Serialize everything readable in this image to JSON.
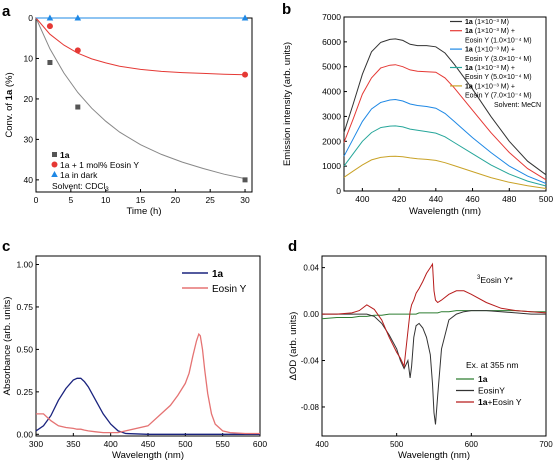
{
  "chart_data": [
    {
      "panel": "a",
      "type": "scatter",
      "xlabel": "Time (h)",
      "ylabel": "Conv. of 1a (%)",
      "xlim": [
        0,
        31
      ],
      "ylim": [
        0,
        43
      ],
      "y_inverted": true,
      "xticks": [
        "0",
        "5",
        "10",
        "15",
        "20",
        "25",
        "30"
      ],
      "yticks": [
        "0",
        "10",
        "20",
        "30",
        "40"
      ],
      "series": [
        {
          "name": "1a",
          "color": "#555555",
          "marker": "square",
          "points": [
            [
              2,
              11
            ],
            [
              6,
              22
            ],
            [
              30,
              40
            ]
          ],
          "fit": [
            [
              0,
              0
            ],
            [
              2,
              7.6
            ],
            [
              4,
              13.6
            ],
            [
              6,
              18.4
            ],
            [
              8,
              22.3
            ],
            [
              10,
              25.5
            ],
            [
              12,
              28.2
            ],
            [
              15,
              31.3
            ],
            [
              18,
              33.7
            ],
            [
              21,
              35.6
            ],
            [
              24,
              37.2
            ],
            [
              27,
              38.6
            ],
            [
              30,
              39.7
            ]
          ],
          "fit_color": "#888888"
        },
        {
          "name": "1a + 1 mol% Eosin Y",
          "color": "#e53935",
          "marker": "circle",
          "points": [
            [
              2,
              2
            ],
            [
              6,
              8
            ],
            [
              30,
              14
            ]
          ],
          "fit": [
            [
              0,
              0
            ],
            [
              2,
              4
            ],
            [
              4,
              6.7
            ],
            [
              6,
              8.7
            ],
            [
              8,
              10.1
            ],
            [
              10,
              11.1
            ],
            [
              12,
              11.9
            ],
            [
              15,
              12.7
            ],
            [
              18,
              13.2
            ],
            [
              21,
              13.5
            ],
            [
              24,
              13.7
            ],
            [
              27,
              13.9
            ],
            [
              30,
              14
            ]
          ],
          "fit_color": "#e53935"
        },
        {
          "name": "1a in dark",
          "color": "#1e88e5",
          "marker": "triangle",
          "points": [
            [
              2,
              0
            ],
            [
              6,
              0
            ],
            [
              30,
              0
            ]
          ],
          "fit": [
            [
              0,
              0
            ],
            [
              30,
              0
            ]
          ],
          "fit_color": "#1e88e5"
        }
      ],
      "legend_lines": [
        "1a",
        "1a + 1 mol% Eosin Y",
        "1a in dark",
        "Solvent: CDCl3"
      ]
    },
    {
      "panel": "b",
      "type": "line",
      "xlabel": "Wavelength (nm)",
      "ylabel": "Emission intensity (arb. units)",
      "xlim": [
        390,
        500
      ],
      "ylim": [
        0,
        7000
      ],
      "xticks": [
        "400",
        "420",
        "440",
        "460",
        "480",
        "500"
      ],
      "yticks": [
        "0",
        "1000",
        "2000",
        "3000",
        "4000",
        "5000",
        "6000",
        "7000"
      ],
      "x": [
        390,
        395,
        400,
        405,
        410,
        415,
        418,
        422,
        426,
        430,
        435,
        440,
        445,
        450,
        460,
        470,
        480,
        490,
        500
      ],
      "series": [
        {
          "name": "1a (1×10⁻³ M)",
          "color": "#333333",
          "values": [
            2350,
            3500,
            4700,
            5600,
            5980,
            6100,
            6120,
            6060,
            5900,
            5850,
            5850,
            5800,
            5550,
            5100,
            4100,
            3000,
            2000,
            1200,
            650
          ]
        },
        {
          "name": "1a (1×10⁻³ M) + Eosin Y (1.0×10⁻⁴ M)",
          "color": "#e53935",
          "values": [
            1950,
            2900,
            3900,
            4550,
            4950,
            5060,
            5080,
            5000,
            4870,
            4820,
            4800,
            4780,
            4550,
            4150,
            3250,
            2350,
            1550,
            900,
            450
          ]
        },
        {
          "name": "1a (1×10⁻³ M) + Eosin Y (3.0×10⁻⁴ M)",
          "color": "#1e88e5",
          "values": [
            1400,
            2100,
            2800,
            3300,
            3560,
            3660,
            3680,
            3620,
            3500,
            3440,
            3400,
            3330,
            3120,
            2800,
            2150,
            1550,
            1000,
            600,
            300
          ]
        },
        {
          "name": "1a (1×10⁻³ M) + Eosin Y (5.0×10⁻⁴ M)",
          "color": "#26a69a",
          "values": [
            1000,
            1500,
            2000,
            2350,
            2550,
            2610,
            2620,
            2580,
            2490,
            2440,
            2390,
            2330,
            2180,
            1950,
            1500,
            1050,
            680,
            400,
            200
          ]
        },
        {
          "name": "1a (1×10⁻³ M) + Eosin Y (7.0×10⁻⁴ M)",
          "color": "#c9a227",
          "values": [
            550,
            800,
            1050,
            1250,
            1350,
            1390,
            1400,
            1380,
            1330,
            1300,
            1270,
            1230,
            1140,
            1020,
            780,
            540,
            350,
            210,
            100
          ]
        }
      ],
      "legend_rows": [
        {
          "text": "1a (1×10⁻³ M)",
          "color": "#333333",
          "line": true
        },
        {
          "text": "1a (1×10⁻³ M) +",
          "color": "#e53935",
          "line": true
        },
        {
          "text": "Eosin Y (1.0×10⁻⁴ M)",
          "color": "",
          "line": false
        },
        {
          "text": "1a (1×10⁻³ M) +",
          "color": "#1e88e5",
          "line": true
        },
        {
          "text": "Eosin Y (3.0×10⁻⁴ M)",
          "color": "",
          "line": false
        },
        {
          "text": "1a (1×10⁻³ M) +",
          "color": "#26a69a",
          "line": true
        },
        {
          "text": "Eosin Y (5.0×10⁻⁴ M)",
          "color": "",
          "line": false
        },
        {
          "text": "1a (1×10⁻³ M) +",
          "color": "#c9a227",
          "line": true
        },
        {
          "text": "Eosin Y (7.0×10⁻⁴ M)",
          "color": "",
          "line": false
        },
        {
          "text": "Solvent: MeCN",
          "color": "",
          "line": false
        }
      ]
    },
    {
      "panel": "c",
      "type": "line",
      "xlabel": "Wavelength (nm)",
      "ylabel": "Absorbance (arb. units)",
      "xlim": [
        300,
        600
      ],
      "ylim": [
        -0.01,
        1.05
      ],
      "xticks": [
        "300",
        "350",
        "400",
        "450",
        "500",
        "550",
        "600"
      ],
      "yticks": [
        "0.00",
        "0.25",
        "0.50",
        "0.75",
        "1.00"
      ],
      "x": [
        300,
        310,
        320,
        330,
        340,
        350,
        355,
        360,
        365,
        370,
        380,
        390,
        400,
        410,
        420,
        450,
        480,
        490,
        500,
        505,
        510,
        515,
        518,
        520,
        523,
        526,
        530,
        535,
        540,
        550,
        560,
        580,
        600
      ],
      "series": [
        {
          "name": "1a",
          "color": "#1a237e",
          "values": [
            0.02,
            0.05,
            0.11,
            0.2,
            0.27,
            0.32,
            0.33,
            0.33,
            0.31,
            0.28,
            0.2,
            0.12,
            0.06,
            0.02,
            0.005,
            0,
            0,
            0,
            0,
            0,
            0,
            0,
            0,
            0,
            0,
            0,
            0,
            0,
            0,
            0,
            0,
            0,
            0
          ]
        },
        {
          "name": "Eosin Y",
          "color": "#e57373",
          "values": [
            0.12,
            0.12,
            0.08,
            0.05,
            0.04,
            0.035,
            0.03,
            0.03,
            0.025,
            0.02,
            0.015,
            0.01,
            0.01,
            0.01,
            0.02,
            0.05,
            0.17,
            0.23,
            0.3,
            0.36,
            0.46,
            0.55,
            0.59,
            0.58,
            0.5,
            0.38,
            0.24,
            0.12,
            0.06,
            0.02,
            0.01,
            0.005,
            0.005
          ]
        }
      ]
    },
    {
      "panel": "d",
      "type": "line",
      "xlabel": "Wavelength (nm)",
      "ylabel": "ΔOD (arb. units)",
      "xlim": [
        400,
        700
      ],
      "ylim": [
        -0.105,
        0.05
      ],
      "xticks": [
        "400",
        "500",
        "600",
        "700"
      ],
      "yticks": [
        "0.04",
        "0.00",
        "-0.04",
        "-0.08"
      ],
      "x": [
        400,
        420,
        440,
        450,
        460,
        470,
        480,
        490,
        500,
        505,
        510,
        515,
        518,
        520,
        523,
        526,
        530,
        535,
        540,
        545,
        548,
        550,
        552,
        555,
        560,
        570,
        580,
        590,
        600,
        620,
        640,
        660,
        680,
        700
      ],
      "series": [
        {
          "name": "1a",
          "color": "#2e7d32",
          "values": [
            -0.004,
            -0.003,
            -0.003,
            -0.002,
            -0.002,
            -0.001,
            -0.001,
            0,
            0,
            0,
            0,
            0,
            0,
            0,
            0,
            0,
            0.001,
            0.001,
            0.001,
            0.001,
            0.001,
            0.001,
            0.001,
            0.001,
            0.002,
            0.002,
            0.003,
            0.003,
            0.003,
            0.003,
            0.003,
            0.003,
            0.002,
            0.002
          ]
        },
        {
          "name": "EosinY",
          "color": "#333333",
          "values": [
            0,
            0,
            0,
            0,
            0,
            -0.002,
            -0.008,
            -0.018,
            -0.03,
            -0.04,
            -0.047,
            -0.04,
            -0.055,
            -0.045,
            -0.02,
            -0.01,
            -0.008,
            -0.012,
            -0.02,
            -0.035,
            -0.06,
            -0.085,
            -0.095,
            -0.07,
            -0.03,
            -0.005,
            0,
            0.002,
            0.003,
            0.003,
            0.002,
            0.001,
            0,
            0
          ]
        },
        {
          "name": "1a+Eosin Y",
          "color": "#b71c1c",
          "values": [
            0,
            0,
            0.001,
            0.003,
            0.008,
            0.004,
            -0.005,
            -0.02,
            -0.033,
            -0.038,
            -0.045,
            -0.015,
            0.002,
            0.008,
            0.012,
            0.018,
            0.022,
            0.028,
            0.035,
            0.04,
            0.043,
            0.02,
            0.012,
            0.01,
            0.012,
            0.017,
            0.02,
            0.02,
            0.017,
            0.01,
            0.005,
            0.003,
            0.002,
            0.001
          ]
        }
      ],
      "annotations": [
        "Ex. at 355 nm",
        "3Eosin Y*"
      ]
    }
  ],
  "labels": {
    "panel_a": "a",
    "panel_b": "b",
    "panel_c": "c",
    "panel_d": "d",
    "a_legend_1": "1a",
    "a_legend_2": "1a + 1 mol% Eosin Y",
    "a_legend_3": "1a in dark",
    "a_solvent": "Solvent: CDCl",
    "a_solvent_sub": "3",
    "d_ex": "Ex. at 355 nm",
    "d_triplet_sup": "3",
    "d_triplet": "Eosin Y*"
  }
}
